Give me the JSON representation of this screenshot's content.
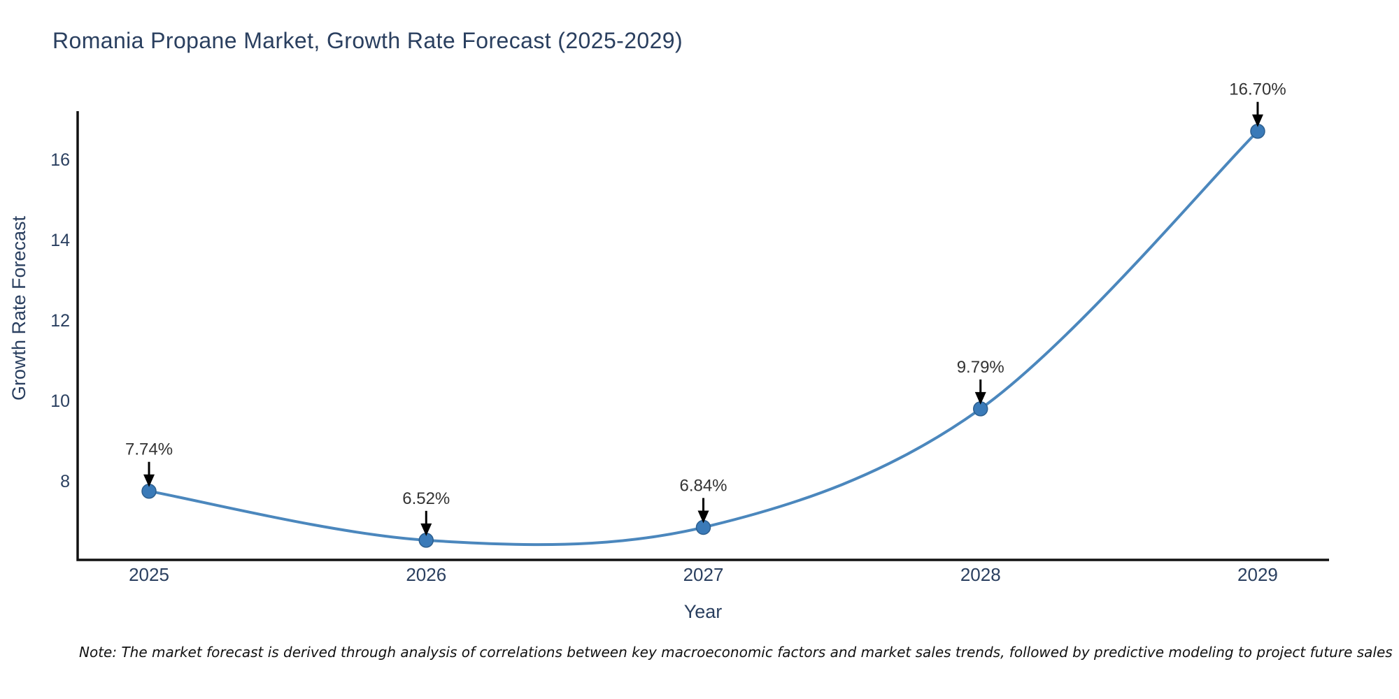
{
  "title": "Romania Propane Market, Growth Rate Forecast (2025-2029)",
  "note": "Note: The market forecast is derived through analysis of correlations between key macroeconomic factors and market sales trends, followed by predictive modeling to project future sales",
  "chart_data": {
    "type": "line",
    "title": "Romania Propane Market, Growth Rate Forecast (2025-2029)",
    "xlabel": "Year",
    "ylabel": "Growth Rate Forecast",
    "x": [
      2025,
      2026,
      2027,
      2028,
      2029
    ],
    "series": [
      {
        "name": "Growth Rate Forecast",
        "values": [
          7.74,
          6.52,
          6.84,
          9.79,
          16.7
        ],
        "point_labels": [
          "7.74%",
          "6.52%",
          "6.84%",
          "9.79%",
          "16.70%"
        ]
      }
    ],
    "y_ticks": [
      8,
      10,
      12,
      14,
      16
    ],
    "x_ticks": [
      2025,
      2026,
      2027,
      2028,
      2029
    ],
    "xlim": [
      2024.7425,
      2029.2575
    ],
    "ylim": [
      6.03,
      17.2
    ],
    "line_shape": "spline",
    "grid": false,
    "legend_position": "none",
    "annotations_have_arrows": true,
    "colors": {
      "line": "#4b87bd",
      "marker_fill": "#3a7ab8",
      "marker_edge": "#2d5f8f",
      "axis_line": "#111111",
      "title_text": "#2a3f5f",
      "tick_text": "#2a3f5f",
      "axis_title_text": "#2a3f5f",
      "annotation_text": "#333333",
      "arrow": "#000000",
      "background": "#ffffff"
    }
  }
}
